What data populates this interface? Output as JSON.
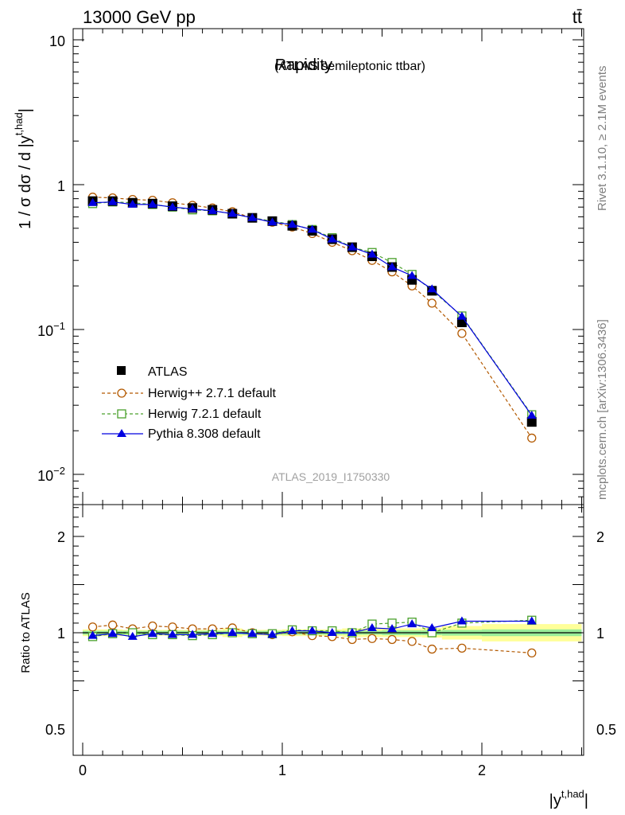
{
  "header": {
    "energy_label": "13000 GeV pp",
    "process_label": "tt̄"
  },
  "side_labels": {
    "rivet": "Rivet 3.1.10, ≥ 2.1M events",
    "source": "mcplots.cern.ch [arXiv:1306.3436]"
  },
  "chart_data": [
    {
      "type": "line",
      "panel": "main",
      "title": "Rapidity",
      "subtitle": "(ATLAS semileptonic ttbar)",
      "analysis_label": "ATLAS_2019_I1750330",
      "ylabel": "1 / σ dσ / d |y^{t,had}|",
      "yscale": "log",
      "ylim": [
        0.006,
        13
      ],
      "xlim": [
        -0.05,
        2.55
      ],
      "ytick_labels": [
        "10",
        "1",
        "10^-1",
        "10^-2"
      ],
      "legend_position": "lower-left",
      "x": [
        0.05,
        0.15,
        0.25,
        0.35,
        0.45,
        0.55,
        0.65,
        0.75,
        0.85,
        0.95,
        1.05,
        1.15,
        1.25,
        1.35,
        1.45,
        1.55,
        1.65,
        1.75,
        1.9,
        2.25
      ],
      "series": [
        {
          "name": "ATLAS",
          "style": "data",
          "color": "#000000",
          "values": [
            0.77,
            0.77,
            0.75,
            0.74,
            0.71,
            0.69,
            0.67,
            0.63,
            0.59,
            0.56,
            0.52,
            0.48,
            0.42,
            0.37,
            0.32,
            0.27,
            0.22,
            0.185,
            0.112,
            0.023
          ]
        },
        {
          "name": "Herwig++ 2.7.1 default",
          "style": "circle-dashed",
          "color": "#b35900",
          "values": [
            0.82,
            0.81,
            0.79,
            0.78,
            0.75,
            0.72,
            0.69,
            0.65,
            0.59,
            0.55,
            0.51,
            0.46,
            0.4,
            0.35,
            0.3,
            0.25,
            0.2,
            0.152,
            0.094,
            0.0178
          ]
        },
        {
          "name": "Herwig 7.2.1 default",
          "style": "square-dashed",
          "color": "#4aa02c",
          "values": [
            0.74,
            0.76,
            0.75,
            0.73,
            0.7,
            0.67,
            0.66,
            0.63,
            0.59,
            0.56,
            0.53,
            0.49,
            0.43,
            0.37,
            0.34,
            0.29,
            0.24,
            0.186,
            0.124,
            0.0258
          ]
        },
        {
          "name": "Pythia 8.308 default",
          "style": "triangle-solid",
          "color": "#0000e0",
          "values": [
            0.75,
            0.76,
            0.73,
            0.73,
            0.7,
            0.68,
            0.66,
            0.63,
            0.59,
            0.55,
            0.53,
            0.49,
            0.42,
            0.37,
            0.33,
            0.27,
            0.235,
            0.19,
            0.123,
            0.0255
          ]
        }
      ]
    },
    {
      "type": "line",
      "panel": "ratio",
      "ylabel": "Ratio to ATLAS",
      "xlabel": "|y^{t,had}|",
      "ylim": [
        0.35,
        2.35
      ],
      "xlim": [
        -0.05,
        2.55
      ],
      "xtick_labels": [
        "0",
        "1",
        "2"
      ],
      "ytick_labels": [
        "2",
        "1",
        "0.5"
      ],
      "reference_line": 1.0,
      "band_edges": [
        0.0,
        0.1,
        0.2,
        0.3,
        0.4,
        0.5,
        0.6,
        0.7,
        0.8,
        0.9,
        1.0,
        1.1,
        1.2,
        1.3,
        1.4,
        1.5,
        1.6,
        1.7,
        1.8,
        2.0,
        2.5
      ],
      "stat_band": [
        0.02,
        0.02,
        0.02,
        0.02,
        0.02,
        0.02,
        0.02,
        0.02,
        0.02,
        0.02,
        0.02,
        0.02,
        0.02,
        0.02,
        0.02,
        0.025,
        0.025,
        0.025,
        0.03,
        0.035
      ],
      "total_band": [
        0.035,
        0.035,
        0.03,
        0.03,
        0.03,
        0.03,
        0.03,
        0.045,
        0.03,
        0.03,
        0.035,
        0.035,
        0.035,
        0.045,
        0.045,
        0.045,
        0.045,
        0.05,
        0.07,
        0.09
      ],
      "x": [
        0.05,
        0.15,
        0.25,
        0.35,
        0.45,
        0.55,
        0.65,
        0.75,
        0.85,
        0.95,
        1.05,
        1.15,
        1.25,
        1.35,
        1.45,
        1.55,
        1.65,
        1.75,
        1.9,
        2.25
      ],
      "series": [
        {
          "name": "Herwig++ 2.7.1 default",
          "style": "circle-dashed",
          "color": "#b35900",
          "values": [
            1.06,
            1.08,
            1.04,
            1.07,
            1.06,
            1.04,
            1.04,
            1.05,
            1.0,
            0.98,
            1.01,
            0.97,
            0.96,
            0.93,
            0.94,
            0.93,
            0.91,
            0.83,
            0.84,
            0.79
          ]
        },
        {
          "name": "Herwig 7.2.1 default",
          "style": "square-dashed",
          "color": "#4aa02c",
          "values": [
            0.96,
            0.99,
            1.0,
            0.98,
            0.98,
            0.97,
            0.98,
            1.0,
            0.99,
            0.99,
            1.03,
            1.02,
            1.02,
            1.0,
            1.09,
            1.1,
            1.11,
            1.0,
            1.1,
            1.13
          ]
        },
        {
          "name": "Pythia 8.308 default",
          "style": "triangle-solid",
          "color": "#0000e0",
          "values": [
            0.97,
            0.99,
            0.96,
            0.99,
            0.98,
            0.98,
            0.99,
            1.0,
            0.99,
            0.98,
            1.02,
            1.02,
            1.0,
            1.0,
            1.05,
            1.04,
            1.09,
            1.05,
            1.12,
            1.12
          ]
        }
      ]
    }
  ],
  "colors": {
    "yellow_band": "#ffff99",
    "green_band": "#99ee99"
  }
}
